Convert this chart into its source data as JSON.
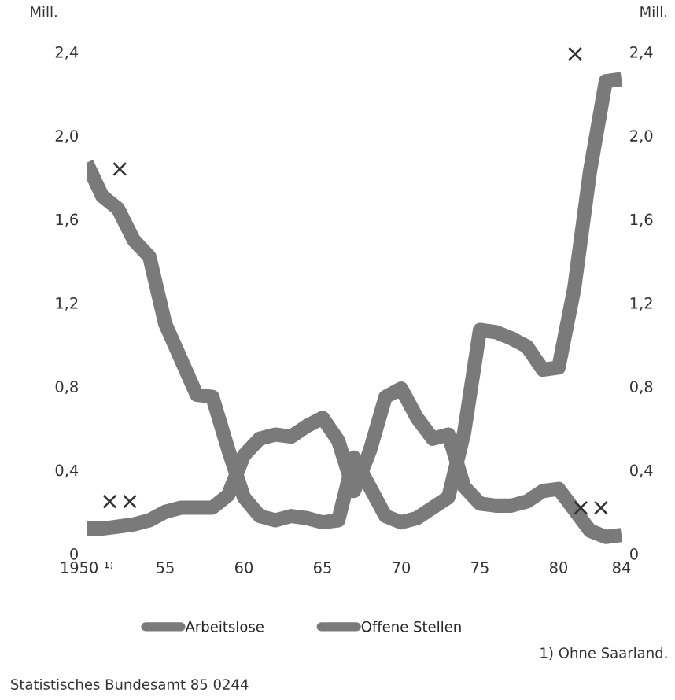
{
  "chart_data": {
    "type": "line",
    "x": [
      1950,
      1951,
      1952,
      1953,
      1954,
      1955,
      1956,
      1957,
      1958,
      1959,
      1960,
      1961,
      1962,
      1963,
      1964,
      1965,
      1966,
      1967,
      1968,
      1969,
      1970,
      1971,
      1972,
      1973,
      1974,
      1975,
      1976,
      1977,
      1978,
      1979,
      1980,
      1981,
      1982,
      1983,
      1984
    ],
    "series": [
      {
        "name": "Arbeitslose",
        "color": "#7a7a7a",
        "values": [
          1.87,
          1.71,
          1.65,
          1.5,
          1.42,
          1.1,
          0.93,
          0.76,
          0.75,
          0.5,
          0.27,
          0.18,
          0.16,
          0.18,
          0.17,
          0.15,
          0.16,
          0.46,
          0.32,
          0.18,
          0.15,
          0.17,
          0.22,
          0.27,
          0.58,
          1.07,
          1.06,
          1.03,
          0.99,
          0.88,
          0.89,
          1.27,
          1.83,
          2.26,
          2.27
        ]
      },
      {
        "name": "Offene Stellen",
        "color": "#7a7a7a",
        "values": [
          0.12,
          0.12,
          0.13,
          0.14,
          0.16,
          0.2,
          0.22,
          0.22,
          0.22,
          0.28,
          0.47,
          0.55,
          0.57,
          0.56,
          0.61,
          0.65,
          0.54,
          0.3,
          0.49,
          0.75,
          0.79,
          0.65,
          0.55,
          0.57,
          0.32,
          0.24,
          0.23,
          0.23,
          0.25,
          0.3,
          0.31,
          0.21,
          0.11,
          0.08,
          0.09
        ]
      }
    ],
    "xlim": [
      1950,
      1984
    ],
    "xticks": [
      {
        "value": 1950,
        "label": "1950 ¹⁾"
      },
      {
        "value": 1955,
        "label": "55"
      },
      {
        "value": 1960,
        "label": "60"
      },
      {
        "value": 1965,
        "label": "65"
      },
      {
        "value": 1970,
        "label": "70"
      },
      {
        "value": 1975,
        "label": "75"
      },
      {
        "value": 1980,
        "label": "80"
      },
      {
        "value": 1984,
        "label": "84"
      }
    ],
    "ylim": [
      0,
      2.4
    ],
    "yticks": [
      0,
      {
        "value": 0.4,
        "label": "0,4"
      },
      {
        "value": 0.8,
        "label": "0,8"
      },
      {
        "value": 1.2,
        "label": "1,2"
      },
      {
        "value": 1.6,
        "label": "1,6"
      },
      {
        "value": 2.0,
        "label": "2,0"
      },
      {
        "value": 2.4,
        "label": "2,4"
      }
    ],
    "y2lim": [
      0,
      2.4
    ],
    "y2ticks": [
      0,
      {
        "value": 0.4,
        "label": "0,4"
      },
      {
        "value": 0.8,
        "label": "0,8"
      },
      {
        "value": 1.2,
        "label": "1,2"
      },
      {
        "value": 1.6,
        "label": "1,6"
      },
      {
        "value": 2.0,
        "label": "2,0"
      },
      {
        "value": 2.4,
        "label": "2,4"
      }
    ],
    "ylabel": "Mill.",
    "y2label": "Mill.",
    "legend": "bottom",
    "line_style": "solid",
    "annotations": [
      {
        "text": "×",
        "x": 1951,
        "y": 1.71
      },
      {
        "text": "××",
        "x": 1951,
        "y": 0.12
      },
      {
        "text": "×",
        "x": 1983,
        "y": 2.26
      },
      {
        "text": "××",
        "x": 1984,
        "y": 0.09
      },
      "1) Ohne Saarland.",
      "Statistisches Bundesamt 85 0244"
    ]
  }
}
